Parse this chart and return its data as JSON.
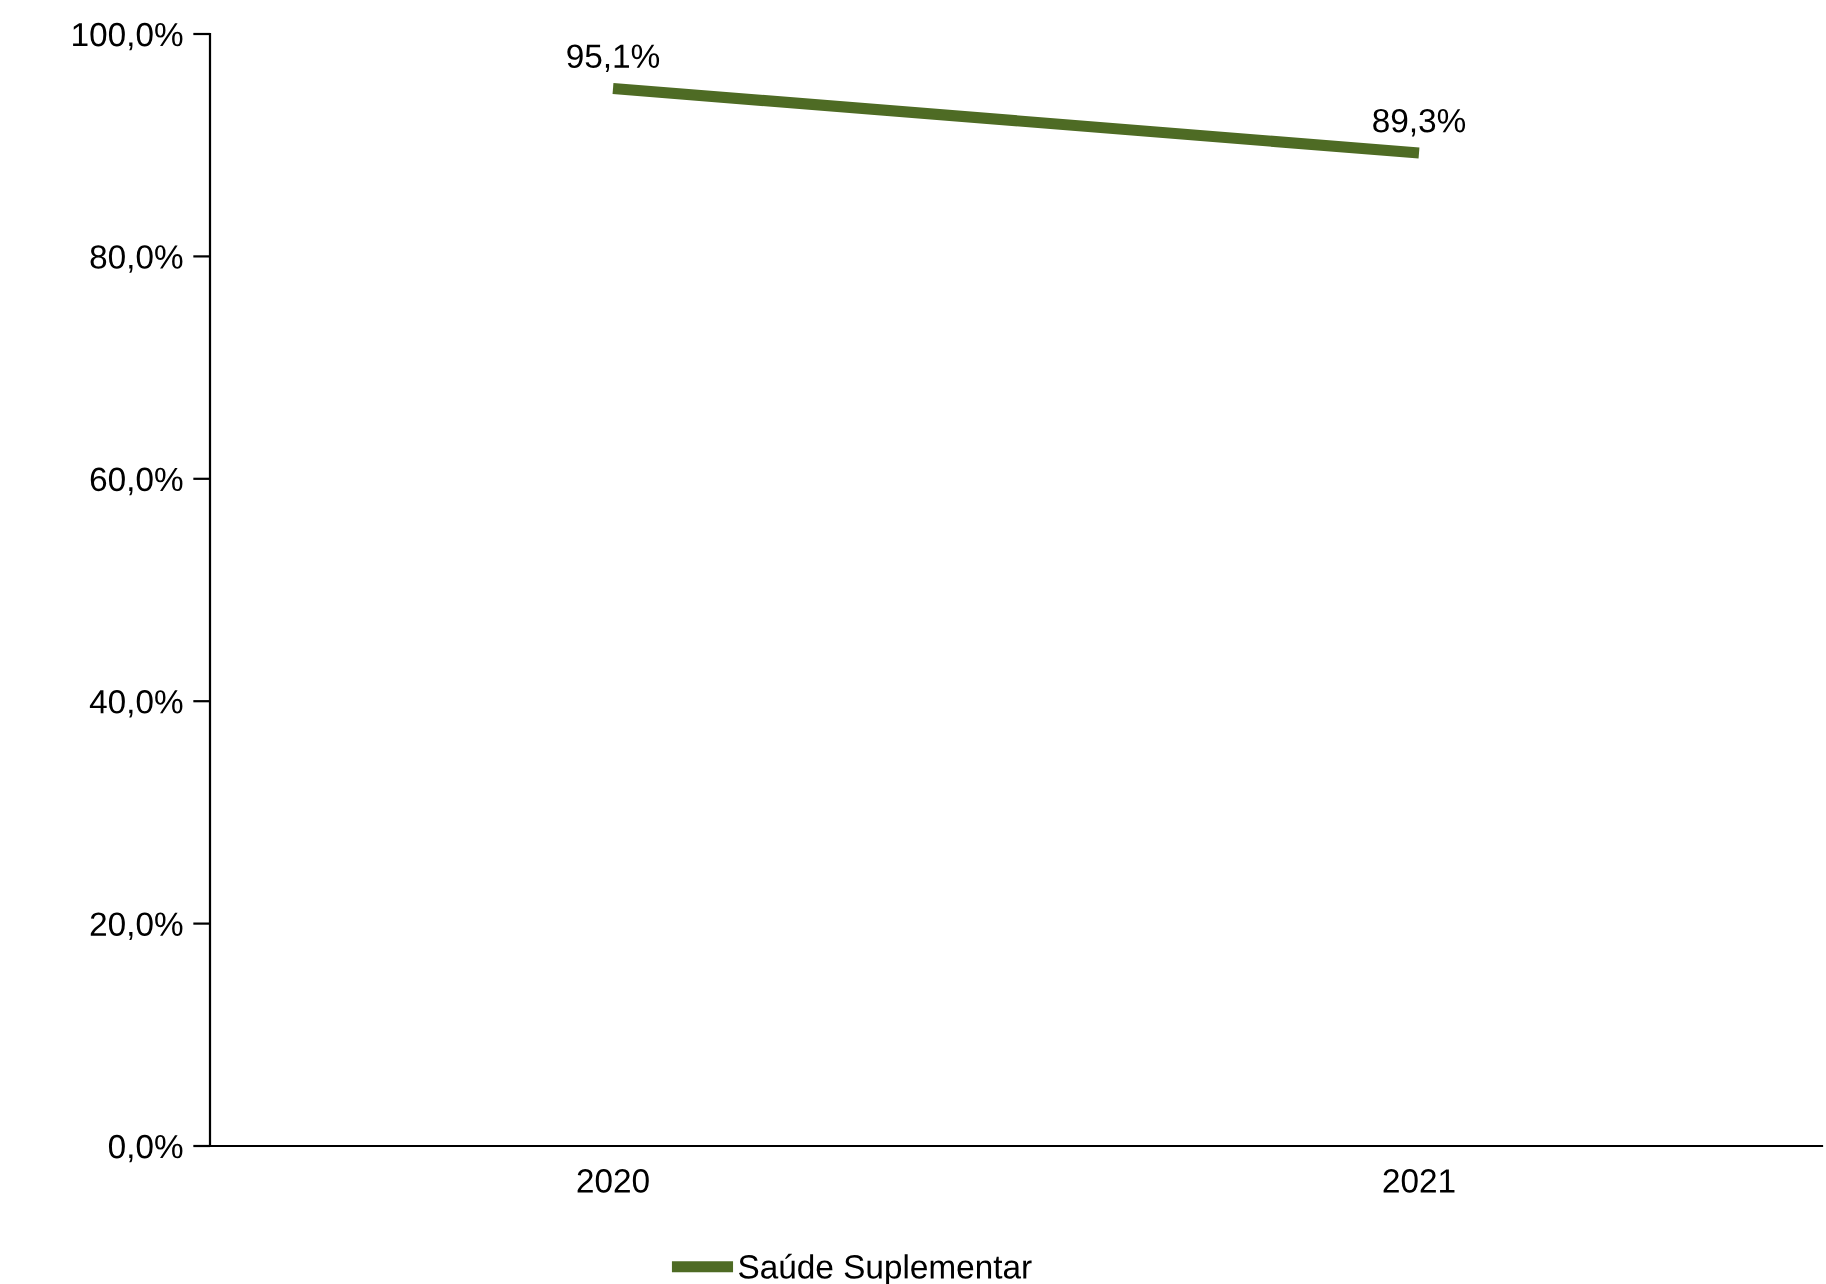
{
  "chart_data": {
    "type": "line",
    "categories": [
      "2020",
      "2021"
    ],
    "series": [
      {
        "name": "Saúde Suplementar",
        "color": "#4e6b24",
        "values": [
          95.1,
          89.3
        ],
        "value_labels": [
          "95,1%",
          "89,3%"
        ]
      }
    ],
    "ylim": [
      0,
      100
    ],
    "yticks": [
      {
        "value": 0,
        "label": "0,0%"
      },
      {
        "value": 20,
        "label": "20,0%"
      },
      {
        "value": 40,
        "label": "40,0%"
      },
      {
        "value": 60,
        "label": "60,0%"
      },
      {
        "value": 80,
        "label": "80,0%"
      },
      {
        "value": 100,
        "label": "100,0%"
      }
    ],
    "grid": false,
    "legend": "bottom",
    "marker": "none",
    "line_style": "solid"
  }
}
